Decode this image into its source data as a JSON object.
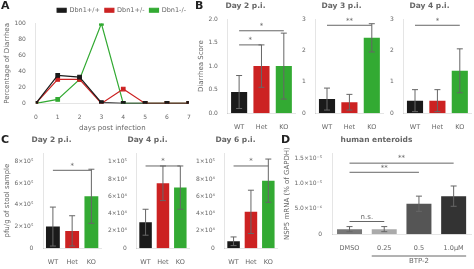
{
  "chart_data": [
    {
      "type": "line",
      "annotations": [
        {
          "text": "A"
        }
      ],
      "xlabel": "days post infection",
      "ylabel": "Percentage of Diarrhea",
      "x": [
        0,
        1,
        2,
        3,
        4,
        5,
        6,
        7
      ],
      "series": [
        {
          "name": "Dbn1+/+",
          "color": "#1a1a1a",
          "marker": "square",
          "values": [
            0,
            35,
            33,
            1,
            0,
            0,
            0,
            0
          ]
        },
        {
          "name": "Dbn1+/-",
          "color": "#cc2222",
          "marker": "square",
          "values": [
            0,
            30,
            30,
            0,
            18,
            0,
            0,
            0
          ]
        },
        {
          "name": "Dbn1-/-",
          "color": "#33aa33",
          "marker": "square",
          "values": [
            0,
            5,
            30,
            100,
            0,
            0,
            0,
            0
          ]
        }
      ],
      "xlim": [
        0,
        7
      ],
      "ylim": [
        0,
        100
      ],
      "xticks": [
        0,
        1,
        2,
        3,
        4,
        5,
        6,
        7
      ],
      "yticks": [
        0,
        20,
        40,
        60,
        80,
        100
      ],
      "legend": "upper right",
      "grid": false
    },
    {
      "type": "bar",
      "title": "Day 2 p.i.",
      "ylabel": "Diarrhea Score",
      "categories": [
        "WT",
        "Het",
        "KO"
      ],
      "values": [
        0.45,
        1.0,
        1.0
      ],
      "errors": [
        0.35,
        0.45,
        0.7
      ],
      "colors": [
        "#1a1a1a",
        "#cc2222",
        "#33aa33"
      ],
      "ylim": [
        0,
        2.0
      ],
      "yticks": [
        {
          "value": 0,
          "label": "0.0"
        },
        0.5,
        {
          "value": 1.0,
          "label": "1.0"
        },
        1.5,
        {
          "value": 2.0,
          "label": "2.0"
        }
      ],
      "grid": false,
      "annotations": [
        {
          "text": "B"
        },
        {
          "x": [
            0,
            1
          ],
          "y": 1.45,
          "text": "*"
        },
        {
          "x": [
            0,
            2
          ],
          "y": 1.75,
          "text": "*"
        }
      ]
    },
    {
      "type": "bar",
      "title": "Day 3 p.i.",
      "categories": [
        "WT",
        "Het",
        "KO"
      ],
      "values": [
        0.45,
        0.35,
        2.4
      ],
      "errors": [
        0.35,
        0.25,
        0.45
      ],
      "colors": [
        "#1a1a1a",
        "#cc2222",
        "#33aa33"
      ],
      "ylim": [
        0,
        3.0
      ],
      "yticks": [
        0,
        1,
        2,
        3
      ],
      "grid": false,
      "annotations": [
        {
          "x": [
            0,
            2
          ],
          "y": 2.8,
          "text": "**"
        }
      ]
    },
    {
      "type": "bar",
      "title": "Day 4 p.i.",
      "categories": [
        "WT",
        "Het",
        "KO"
      ],
      "values": [
        0.4,
        0.4,
        1.35
      ],
      "errors": [
        0.35,
        0.35,
        0.7
      ],
      "colors": [
        "#1a1a1a",
        "#cc2222",
        "#33aa33"
      ],
      "ylim": [
        0,
        3.0
      ],
      "yticks": [
        0,
        1,
        2,
        3
      ],
      "grid": false,
      "annotations": [
        {
          "x": [
            0,
            2
          ],
          "y": 2.8,
          "text": "*"
        }
      ]
    },
    {
      "type": "bar",
      "title": "Day 2 p.i.",
      "ylabel": "pfu/g of stool sample",
      "categories": [
        "WT",
        "Het",
        "KO"
      ],
      "values": [
        200000,
        160000,
        480000
      ],
      "errors": [
        180000,
        140000,
        250000
      ],
      "colors": [
        "#1a1a1a",
        "#cc2222",
        "#33aa33"
      ],
      "ylim": [
        0,
        880000
      ],
      "yticks": [
        0,
        {
          "value": 200000,
          "label": "2×10⁵"
        },
        {
          "value": 400000,
          "label": "4×10⁵"
        },
        {
          "value": 600000,
          "label": "6×10⁵"
        },
        {
          "value": 800000,
          "label": "8×10⁵"
        }
      ],
      "grid": false,
      "annotations": [
        {
          "text": "C"
        },
        {
          "x": [
            0,
            2
          ],
          "y": 720000,
          "text": "*"
        }
      ]
    },
    {
      "type": "bar",
      "title": "Day 4 p.i.",
      "categories": [
        "WT",
        "Het",
        "KO"
      ],
      "values": [
        30000,
        75000,
        70000
      ],
      "errors": [
        15000,
        20000,
        25000
      ],
      "colors": [
        "#1a1a1a",
        "#cc2222",
        "#33aa33"
      ],
      "ylim": [
        0,
        110000
      ],
      "yticks": [
        0,
        {
          "value": 20000,
          "label": "2×10⁴"
        },
        {
          "value": 40000,
          "label": "4×10⁴"
        },
        {
          "value": 60000,
          "label": "6×10⁴"
        },
        {
          "value": 80000,
          "label": "8×10⁴"
        },
        {
          "value": 100000,
          "label": "1×10⁵"
        }
      ],
      "grid": false,
      "annotations": [
        {
          "x": [
            0,
            2
          ],
          "y": 95000,
          "text": "*"
        }
      ]
    },
    {
      "type": "bar",
      "title": "Day 6 p.i.",
      "categories": [
        "WT",
        "Het",
        "KO"
      ],
      "values": [
        8000,
        42000,
        78000
      ],
      "errors": [
        5000,
        25000,
        25000
      ],
      "colors": [
        "#1a1a1a",
        "#cc2222",
        "#33aa33"
      ],
      "ylim": [
        0,
        110000
      ],
      "yticks": [
        0,
        {
          "value": 20000,
          "label": "2×10⁴"
        },
        {
          "value": 40000,
          "label": "4×10⁴"
        },
        {
          "value": 60000,
          "label": "6×10⁴"
        },
        {
          "value": 80000,
          "label": "8×10⁴"
        },
        {
          "value": 100000,
          "label": "1×10⁵"
        }
      ],
      "grid": false,
      "annotations": [
        {
          "x": [
            0,
            2
          ],
          "y": 95000,
          "text": "*"
        }
      ]
    },
    {
      "type": "bar",
      "title": "human enteroids",
      "ylabel": "NSP5 mRNA (% of GAPDH)",
      "categories": [
        "DMSO",
        "0.25",
        "0.5",
        "1.0μM"
      ],
      "values": [
        1e-06,
        1e-06,
        6e-06,
        7.5e-06
      ],
      "errors": [
        5e-07,
        5e-07,
        1.5e-06,
        2e-06
      ],
      "colors": [
        "#777777",
        "#aaaaaa",
        "#555555",
        "#333333"
      ],
      "ylim": [
        0,
        1.6e-05
      ],
      "yticks": [
        0,
        {
          "value": 5e-06,
          "label": "5.0×10⁻⁶"
        },
        {
          "value": 1e-05,
          "label": "1.0×10⁻⁵"
        },
        {
          "value": 1.5e-05,
          "label": "1.5×10⁻⁵"
        }
      ],
      "grid": false,
      "annotations": [
        {
          "text": "D"
        },
        {
          "x": [
            1,
            3
          ],
          "text": "BTP-2"
        },
        {
          "x": [
            0,
            3
          ],
          "y": 1.4e-05,
          "text": "**"
        },
        {
          "x": [
            0,
            2
          ],
          "y": 1.22e-05,
          "text": "**"
        },
        {
          "x": [
            0,
            1
          ],
          "y": 2.5e-06,
          "text": "n.s."
        }
      ]
    }
  ]
}
